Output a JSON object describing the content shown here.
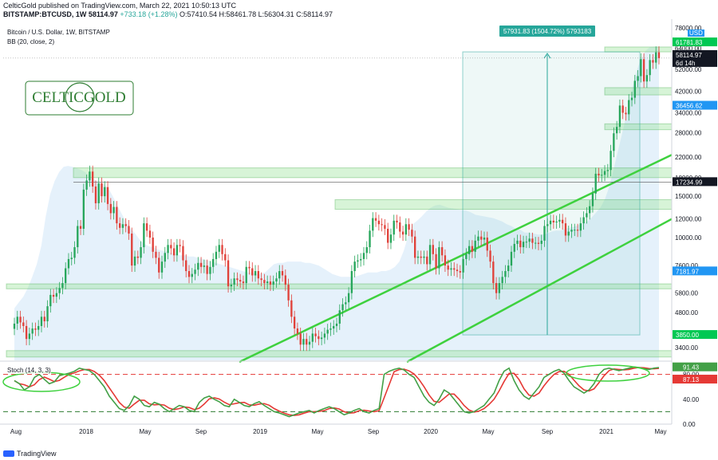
{
  "header": {
    "line1": "CelticGold published on TradingView.com, March 22, 2021 10:50:13 UTC",
    "symbol": "BITSTAMP:BTCUSD, 1W",
    "close_value": "58114.97",
    "change": "+733.18 (+1.28%)",
    "open": "O:57410.54",
    "high": "H:58461.78",
    "low": "L:56304.31",
    "close": "C:58114.97"
  },
  "pane": {
    "title": "Bitcoin / U.S. Dollar, 1W, BITSTAMP",
    "bb_label": "BB (20, close, 2)",
    "stoch_label": "Stoch (14, 3, 3)",
    "currency": "USD",
    "logo_text": "CELTICGOLD"
  },
  "footer": {
    "brand": "TradingView"
  },
  "measure_label": "57931.83 (1504.72%) 5793183",
  "chart_data": {
    "type": "candlestick",
    "title": "Bitcoin / U.S. Dollar, 1W, BITSTAMP",
    "y_scale": "log",
    "y_ticks": [
      3400,
      4800,
      5800,
      7600,
      10000,
      12000,
      15000,
      18000,
      22000,
      28000,
      34000,
      42000,
      52000,
      64000,
      78000
    ],
    "x_ticks": [
      "Aug",
      "2018",
      "May",
      "Sep",
      "2019",
      "May",
      "Sep",
      "2020",
      "May",
      "Sep",
      "2021",
      "May"
    ],
    "price_labels": [
      {
        "value": "61781.83",
        "color": "#00c853"
      },
      {
        "value": "58114.97",
        "color": "#131722"
      },
      {
        "value": "6d 14h",
        "color": "#131722"
      },
      {
        "value": "36456.62",
        "color": "#2196f3"
      },
      {
        "value": "17234.99",
        "color": "#131722"
      },
      {
        "value": "7181.97",
        "color": "#2196f3"
      },
      {
        "value": "3850.00",
        "color": "#00c853"
      }
    ],
    "support_zones": [
      [
        3100,
        3300
      ],
      [
        6050,
        6350
      ],
      [
        13200,
        14500
      ],
      [
        18000,
        19800
      ],
      [
        40500,
        43500
      ],
      [
        28800,
        30500
      ],
      [
        61781,
        64800
      ]
    ],
    "trendlines": [
      {
        "from": [
          "Nov 2018",
          3100
        ],
        "to": [
          "Mar 2021",
          22500
        ]
      },
      {
        "from": [
          "Mar 2020",
          2900
        ],
        "to": [
          "Mar 2021",
          12000
        ]
      }
    ],
    "closes": [
      4300,
      4600,
      4350,
      4200,
      3700,
      3900,
      4100,
      4050,
      4200,
      4600,
      4400,
      5100,
      5700,
      5600,
      5800,
      6100,
      6400,
      7400,
      8100,
      8200,
      9100,
      11200,
      10900,
      16000,
      17500,
      19100,
      16500,
      14000,
      17000,
      15000,
      16400,
      13900,
      12700,
      13500,
      11500,
      11000,
      11400,
      11200,
      10400,
      7600,
      8300,
      8200,
      9100,
      11500,
      10700,
      10000,
      8700,
      8200,
      7100,
      7900,
      8600,
      9300,
      9000,
      8400,
      9300,
      9200,
      8000,
      7200,
      6800,
      7000,
      7300,
      7800,
      7500,
      7600,
      7000,
      7500,
      8100,
      8700,
      9300,
      8500,
      8000,
      6200,
      6300,
      6700,
      6600,
      6500,
      6400,
      7500,
      7400,
      6900,
      7200,
      6700,
      6600,
      6400,
      6500,
      6300,
      6500,
      6700,
      7200,
      6900,
      6300,
      5400,
      4600,
      4100,
      3900,
      3500,
      3700,
      3500,
      3600,
      3900,
      3800,
      3700,
      3750,
      3900,
      4050,
      4100,
      4200,
      4300,
      4900,
      5200,
      5300,
      5800,
      7200,
      7900,
      8000,
      8100,
      8600,
      9100,
      10700,
      12100,
      11800,
      11400,
      11300,
      10900,
      9500,
      10300,
      11800,
      11600,
      10600,
      10300,
      11400,
      10800,
      10100,
      8200,
      8300,
      8200,
      8300,
      7700,
      9300,
      8500,
      7400,
      9100,
      8400,
      7600,
      7300,
      7400,
      7300,
      7200,
      7100,
      8100,
      8500,
      9200,
      8700,
      9700,
      10100,
      9800,
      10000,
      8800,
      7900,
      6400,
      5800,
      6400,
      6800,
      7200,
      7600,
      8700,
      9400,
      9700,
      9100,
      9600,
      9600,
      9900,
      9500,
      9500,
      9400,
      9700,
      11200,
      11400,
      11800,
      11600,
      11700,
      11900,
      11500,
      10200,
      10600,
      10800,
      10800,
      10700,
      11500,
      12200,
      12700,
      13600,
      15400,
      18700,
      18400,
      18500,
      19200,
      19400,
      23400,
      27800,
      29600,
      36500,
      34000,
      33500,
      38500,
      39400,
      46500,
      48700,
      57500,
      46200,
      49200,
      57000,
      55600,
      61500,
      58115
    ],
    "bb_upper": [
      5000,
      5300,
      5600,
      6100,
      6800,
      7700,
      9200,
      12300,
      15300,
      17400,
      19000,
      20000,
      20200,
      20000,
      19700,
      19400,
      18900,
      18100,
      17600,
      17200,
      16900,
      16200,
      15000,
      13700,
      12600,
      11600,
      10900,
      10400,
      9800,
      9400,
      9200,
      9100,
      8900,
      8800,
      8700,
      8600,
      8500,
      8400,
      8400,
      8300,
      8300,
      8200,
      8100,
      8000,
      7900,
      7800,
      7700,
      7600,
      7500,
      7400,
      7300,
      7200,
      7100,
      7100,
      7000,
      7000,
      7100,
      7400,
      7700,
      7800,
      7800,
      7900,
      7900,
      7900,
      7900,
      7800,
      7800,
      7700,
      7600,
      7400,
      7200,
      7000,
      6900,
      6800,
      6800,
      6800,
      6800,
      6900,
      7000,
      7100,
      7100,
      7100,
      7200,
      7200,
      7300,
      7500,
      7900,
      8800,
      10200,
      11400,
      11800,
      12300,
      12900,
      13400,
      13700,
      13800,
      13600,
      13400,
      13300,
      13200,
      13100,
      13000,
      12800,
      12500,
      12400,
      12300,
      12200,
      12100,
      11900,
      11700,
      11400,
      11200,
      10900,
      10800,
      10500,
      10500,
      10400,
      10300,
      10300,
      10400,
      10600,
      10700,
      10700,
      10900,
      11000,
      11100,
      11300,
      11500,
      11700,
      12200,
      12800,
      13500,
      14700,
      16700,
      20000,
      24100,
      28900,
      35000,
      42800,
      51000,
      58000,
      62500,
      64800,
      65000,
      65000
    ],
    "stoch_k": [
      70,
      65,
      55,
      60,
      75,
      80,
      72,
      65,
      68,
      78,
      80,
      82,
      85,
      90,
      88,
      86,
      80,
      70,
      60,
      45,
      35,
      25,
      22,
      30,
      45,
      40,
      30,
      28,
      35,
      32,
      25,
      20,
      25,
      30,
      28,
      22,
      20,
      35,
      42,
      45,
      40,
      36,
      30,
      28,
      40,
      35,
      30,
      28,
      33,
      36,
      30,
      25,
      20,
      18,
      15,
      12,
      15,
      18,
      20,
      22,
      18,
      22,
      25,
      28,
      25,
      20,
      15,
      18,
      22,
      25,
      20,
      18,
      22,
      25,
      80,
      85,
      88,
      90,
      87,
      80,
      75,
      60,
      45,
      35,
      30,
      40,
      55,
      50,
      40,
      30,
      20,
      18,
      20,
      25,
      30,
      40,
      50,
      70,
      85,
      90,
      70,
      55,
      45,
      40,
      50,
      60,
      75,
      80,
      85,
      88,
      82,
      70,
      60,
      55,
      50,
      55,
      65,
      80,
      88,
      90,
      88,
      86,
      88,
      90,
      92,
      91,
      89,
      88,
      90,
      91
    ],
    "stoch_levels": [
      80,
      20
    ],
    "stoch_last": [
      91.43,
      87.13
    ]
  }
}
